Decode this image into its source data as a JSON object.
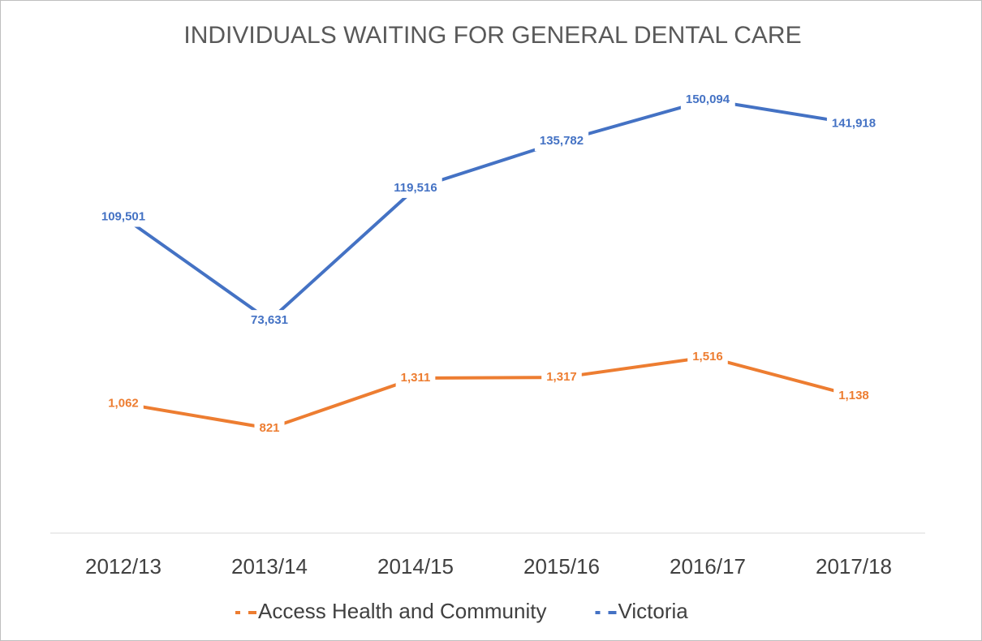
{
  "chart_data": {
    "type": "line",
    "title": "INDIVIDUALS WAITING FOR GENERAL DENTAL CARE",
    "categories": [
      "2012/13",
      "2013/14",
      "2014/15",
      "2015/16",
      "2016/17",
      "2017/18"
    ],
    "series": [
      {
        "name": "Access Health and Community",
        "color": "#ed7d31",
        "axis": "y2",
        "values": [
          1062,
          821,
          1311,
          1317,
          1516,
          1138
        ],
        "value_labels": [
          "1,062",
          "821",
          "1,311",
          "1,317",
          "1,516",
          "1,138"
        ]
      },
      {
        "name": "Victoria",
        "color": "#4472c4",
        "values": [
          109501,
          73631,
          119516,
          135782,
          150094,
          141918
        ],
        "value_labels": [
          "109,501",
          "73,631",
          "119,516",
          "135,782",
          "150,094",
          "141,918"
        ]
      }
    ],
    "ylim": [
      0,
      160000
    ],
    "y2lim": [
      -200,
      4300
    ],
    "legend": "bottom"
  }
}
